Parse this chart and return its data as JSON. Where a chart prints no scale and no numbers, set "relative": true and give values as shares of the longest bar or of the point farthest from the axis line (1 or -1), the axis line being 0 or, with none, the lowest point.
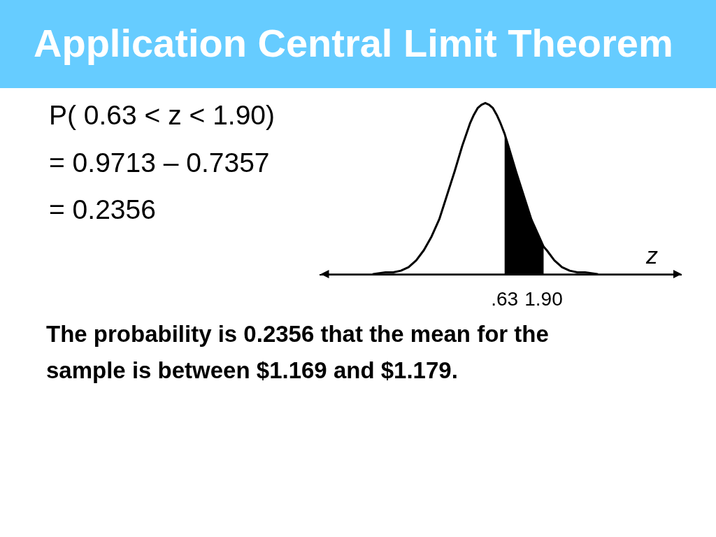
{
  "chart_data": {
    "type": "line",
    "title": "Application Central Limit Theorem",
    "xlabel": "z",
    "relative": true,
    "annotations": [
      "P( 0.63 < z < 1.90)",
      "= 0.9713 – 0.7357",
      "= 0.2356",
      "The probability is 0.2356 that the mean for the sample is between $1.169 and $1.179."
    ],
    "xlim": [
      -5.4,
      6.4
    ],
    "xticks": [
      {
        "value": 0.63,
        "label": ".63"
      },
      {
        "value": 1.9,
        "label": "1.90"
      }
    ],
    "series": [
      {
        "type": "area",
        "color": "#000000",
        "x": [
          0.63,
          0.75,
          1,
          1.25,
          1.5,
          1.75,
          1.9
        ],
        "values": [
          0.82,
          0.75,
          0.6,
          0.46,
          0.32,
          0.22,
          0.16
        ]
      },
      {
        "color": "#000000",
        "x": [
          -3.65,
          -3.25,
          -3,
          -2.75,
          -2.5,
          -2.25,
          -2,
          -1.75,
          -1.5,
          -1.25,
          -1,
          -0.75,
          -0.5,
          -0.375,
          -0.25,
          -0.125,
          0,
          0.125,
          0.25,
          0.375,
          0.5,
          0.63,
          0.75,
          1,
          1.25,
          1.5,
          1.75,
          1.9,
          2,
          2.25,
          2.5,
          2.75,
          3,
          3.25,
          3.65
        ],
        "values": [
          0,
          0.01,
          0.01,
          0.02,
          0.04,
          0.08,
          0.14,
          0.22,
          0.32,
          0.46,
          0.6,
          0.75,
          0.88,
          0.93,
          0.97,
          0.99,
          1,
          0.99,
          0.97,
          0.93,
          0.88,
          0.82,
          0.75,
          0.6,
          0.46,
          0.32,
          0.22,
          0.16,
          0.14,
          0.08,
          0.04,
          0.02,
          0.01,
          0.01,
          0
        ]
      }
    ],
    "grid": false
  }
}
